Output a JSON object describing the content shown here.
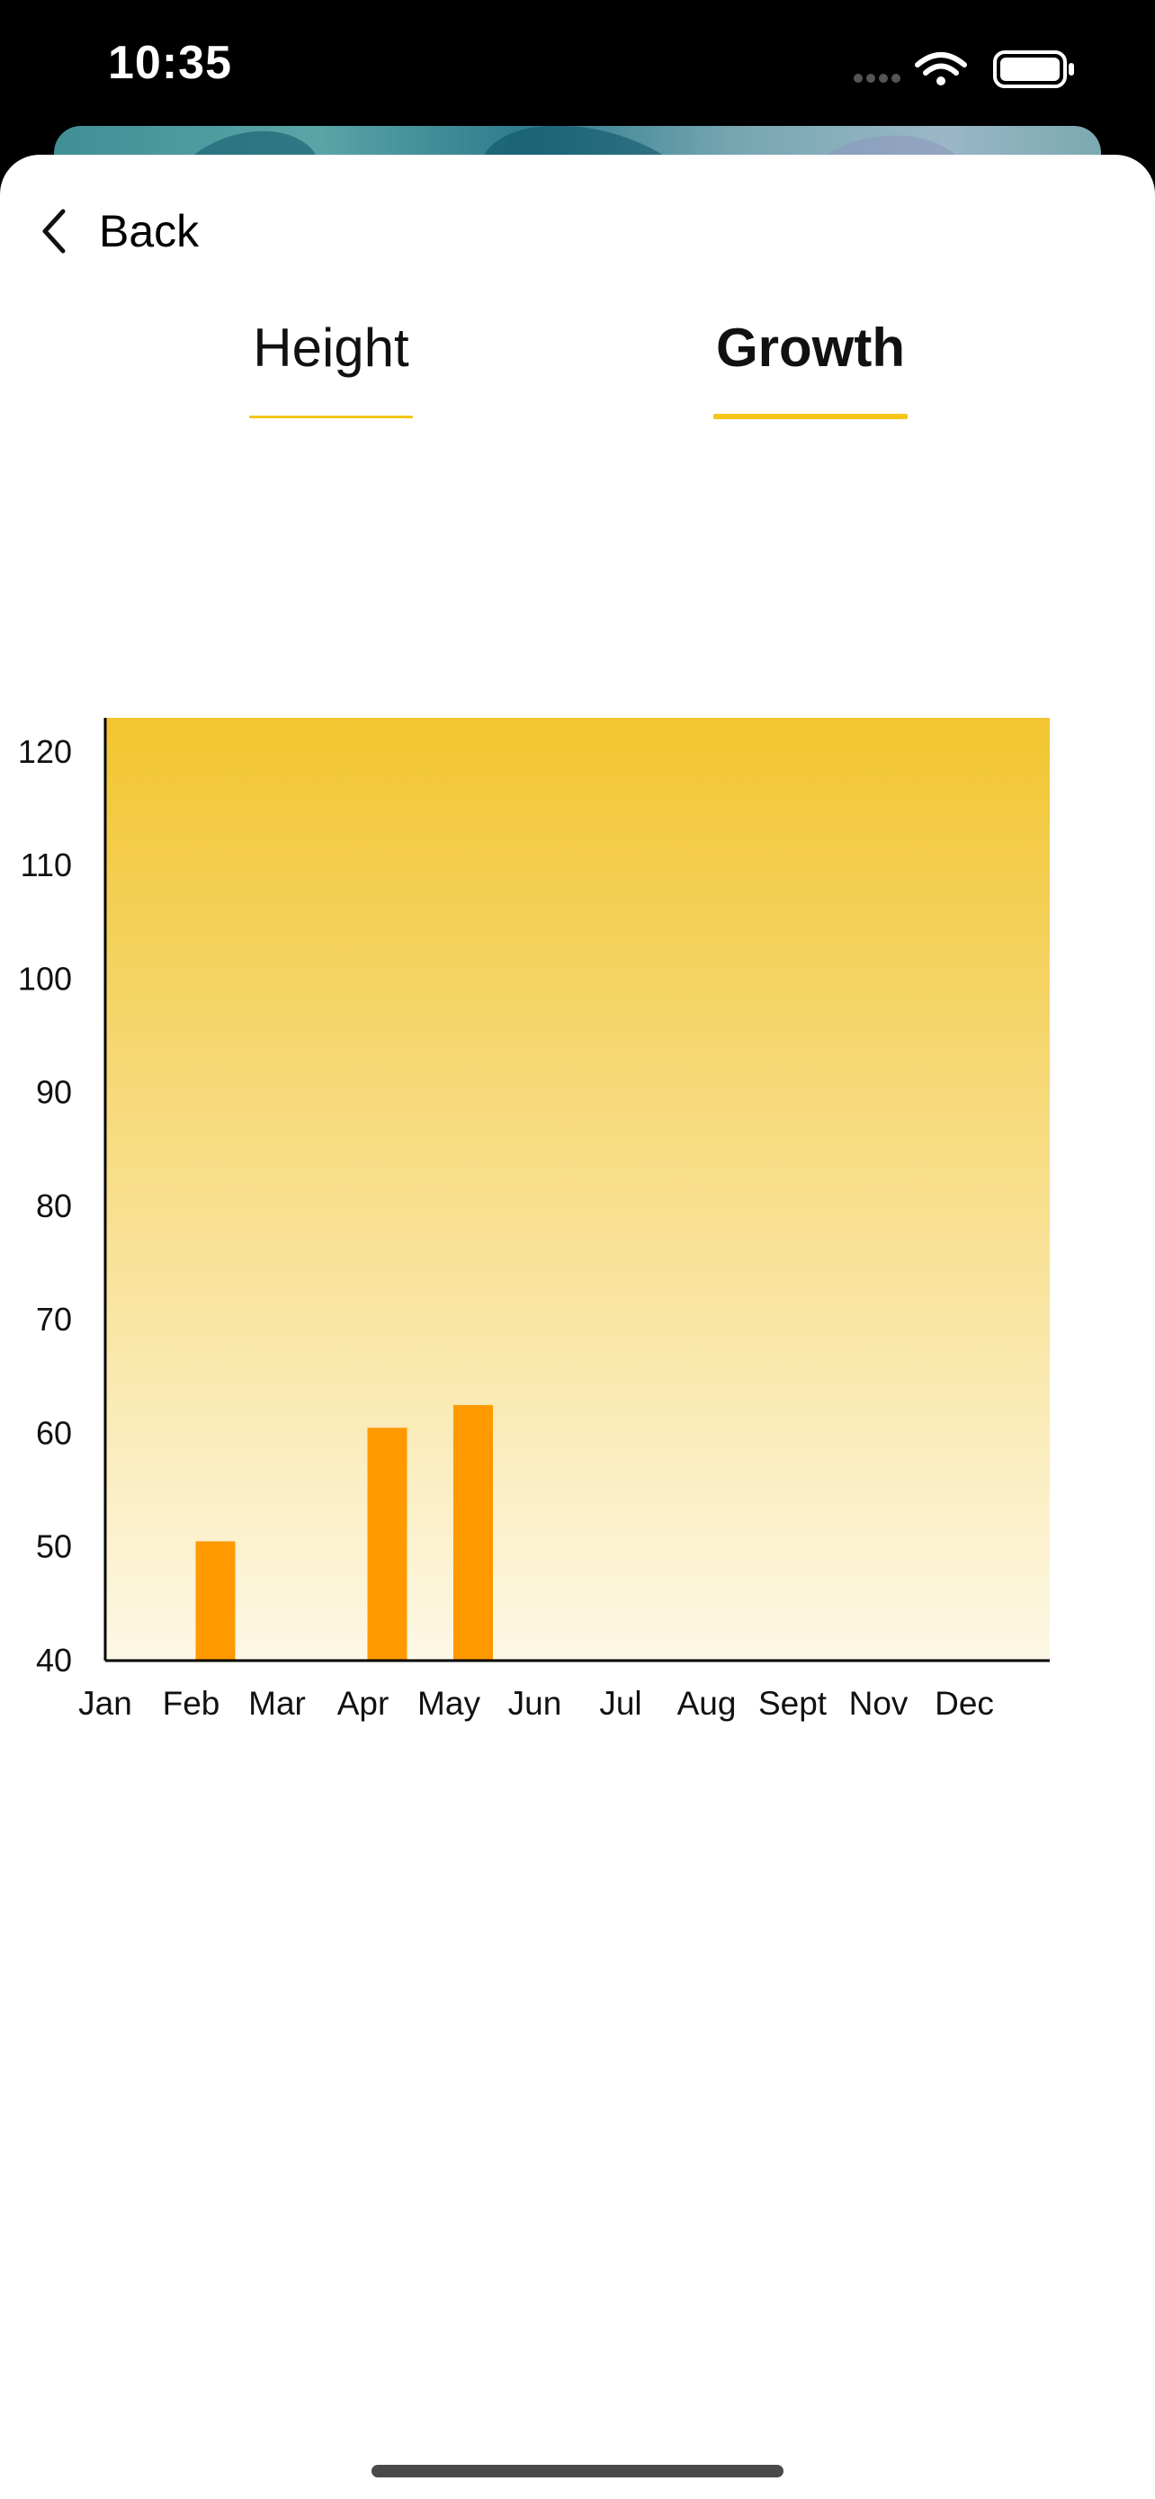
{
  "status_bar": {
    "time": "10:35",
    "icons": [
      "cellular-signal-icon",
      "wifi-icon",
      "battery-icon"
    ]
  },
  "nav": {
    "back_label": "Back",
    "back_icon": "chevron-left-icon"
  },
  "tabs": [
    {
      "label": "Height",
      "selected": false
    },
    {
      "label": "Growth",
      "selected": true
    }
  ],
  "colors": {
    "accent": "#f5c518",
    "bar": "#ff9900",
    "plot_gradient_top": "#f2c530",
    "plot_gradient_bottom": "#fdf8e6"
  },
  "chart_data": {
    "type": "bar",
    "title": "",
    "xlabel": "",
    "ylabel": "",
    "categories": [
      "Jan",
      "Feb",
      "Mar",
      "Apr",
      "May",
      "Jun",
      "Jul",
      "Aug",
      "Sept",
      "Nov",
      "Dec"
    ],
    "values": [
      null,
      50.5,
      null,
      60.5,
      62.5,
      null,
      null,
      null,
      null,
      null,
      null
    ],
    "ylim": [
      40,
      123
    ],
    "yticks": [
      40,
      50,
      60,
      70,
      80,
      90,
      100,
      110,
      120
    ],
    "grid": false,
    "legend": "none"
  }
}
